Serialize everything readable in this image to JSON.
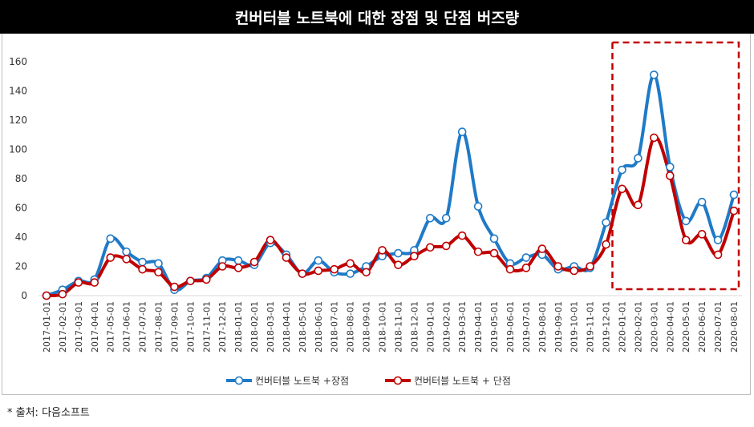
{
  "chart_data": {
    "type": "line",
    "title": "컨버터블 노트북에 대한 장점 및 단점 버즈량",
    "x": [
      "2017-01-01",
      "2017-02-01",
      "2017-03-01",
      "2017-04-01",
      "2017-05-01",
      "2017-06-01",
      "2017-07-01",
      "2017-08-01",
      "2017-09-01",
      "2017-10-01",
      "2017-11-01",
      "2017-12-01",
      "2018-01-01",
      "2018-02-01",
      "2018-03-01",
      "2018-04-01",
      "2018-05-01",
      "2018-06-01",
      "2018-07-01",
      "2018-08-01",
      "2018-09-01",
      "2018-10-01",
      "2018-11-01",
      "2018-12-01",
      "2019-01-01",
      "2019-02-01",
      "2019-03-01",
      "2019-04-01",
      "2019-05-01",
      "2019-06-01",
      "2019-07-01",
      "2019-08-01",
      "2019-09-01",
      "2019-10-01",
      "2019-11-01",
      "2019-12-01",
      "2020-01-01",
      "2020-02-01",
      "2020-03-01",
      "2020-04-01",
      "2020-05-01",
      "2020-06-01",
      "2020-07-01",
      "2020-08-01"
    ],
    "series": [
      {
        "name": "컨버터블 노트북 +장점",
        "color": "#1f7ac7",
        "values": [
          0,
          4,
          10,
          11,
          39,
          30,
          23,
          22,
          4,
          10,
          12,
          24,
          24,
          21,
          36,
          28,
          15,
          24,
          16,
          15,
          20,
          27,
          29,
          31,
          53,
          53,
          112,
          61,
          39,
          22,
          26,
          28,
          18,
          20,
          19,
          50,
          86,
          94,
          151,
          88,
          51,
          64,
          38,
          69
        ]
      },
      {
        "name": "컨버터블 노트북 + 단점",
        "color": "#c00000",
        "values": [
          0,
          1,
          9,
          9,
          26,
          25,
          18,
          16,
          6,
          10,
          11,
          20,
          19,
          23,
          38,
          26,
          15,
          17,
          18,
          22,
          16,
          31,
          21,
          27,
          33,
          34,
          41,
          30,
          29,
          18,
          19,
          32,
          20,
          17,
          20,
          35,
          73,
          62,
          108,
          82,
          38,
          42,
          28,
          58
        ]
      }
    ],
    "ylim": [
      0,
      160
    ],
    "yticks": [
      0,
      20,
      40,
      60,
      80,
      100,
      120,
      140,
      160
    ],
    "grid": false,
    "legend_position": "bottom",
    "highlight_region": {
      "from": "2020-01-01",
      "to": "2020-08-01",
      "style": "dashed",
      "color": "#c00000"
    }
  },
  "footer": {
    "source": "* 출처: 다음소프트"
  }
}
